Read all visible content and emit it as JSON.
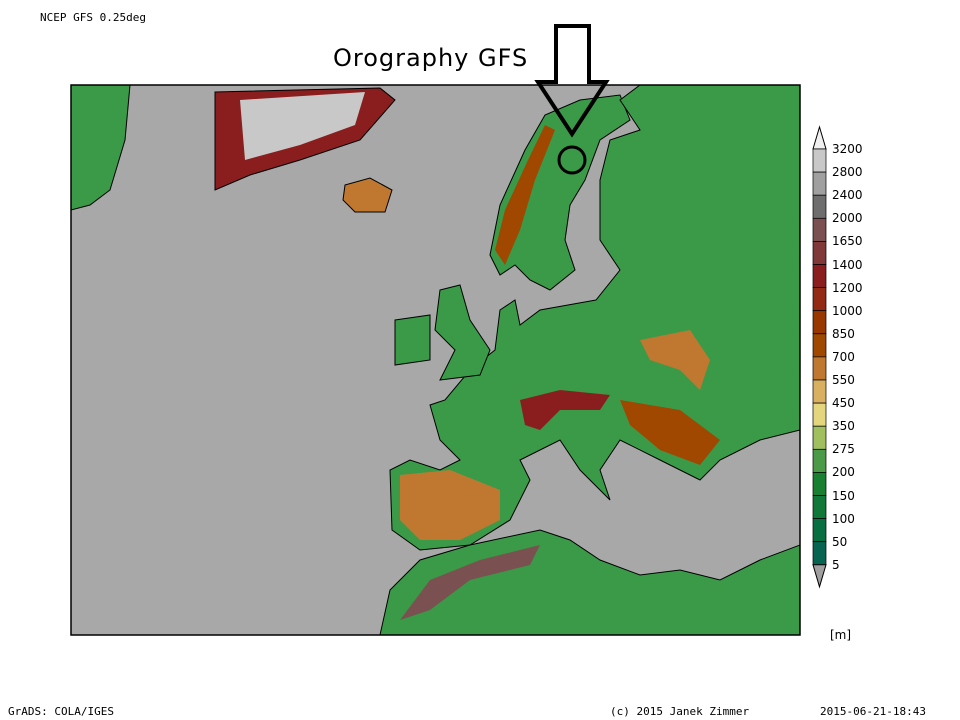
{
  "header": {
    "model_label": "NCEP GFS 0.25deg",
    "title": "Orography GFS"
  },
  "footer": {
    "software": "GrADS: COLA/IGES",
    "copyright": "(c) 2015 Janek Zimmer",
    "timestamp": "2015-06-21-18:43"
  },
  "colorbar": {
    "unit": "[m]",
    "levels": [
      "3200",
      "2800",
      "2400",
      "2000",
      "1650",
      "1400",
      "1200",
      "1000",
      "850",
      "700",
      "550",
      "450",
      "350",
      "275",
      "200",
      "150",
      "100",
      "50",
      "5"
    ],
    "colors": [
      "#c8c8c8",
      "#a0a0a0",
      "#6e6e6e",
      "#7a5050",
      "#803838",
      "#8a1e1e",
      "#922a14",
      "#983800",
      "#a04800",
      "#c07830",
      "#d8b060",
      "#e4d67c",
      "#a0c060",
      "#4a9a48",
      "#188030",
      "#107838",
      "#087040",
      "#066450"
    ],
    "over_color": "#f0f0f0",
    "under_color": "#a0a0a0"
  },
  "map": {
    "sea_color": "#a8a8a8",
    "annotation": "arrow-and-circle marking northern Finland"
  }
}
